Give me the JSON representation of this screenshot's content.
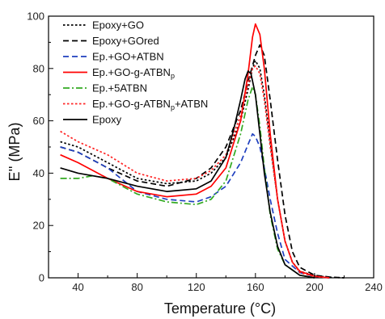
{
  "chart_data": {
    "type": "line",
    "title": "",
    "xlabel": "Temperature (°C)",
    "ylabel": "E'' (MPa)",
    "xlim": [
      20,
      240
    ],
    "ylim": [
      0,
      100
    ],
    "x_ticks": [
      40,
      80,
      120,
      160,
      200,
      240
    ],
    "y_ticks": [
      0,
      20,
      40,
      60,
      80,
      100
    ],
    "grid": false,
    "legend_position": "top-left",
    "series": [
      {
        "name": "Epoxy+GO",
        "color": "#000000",
        "dash": "dotted",
        "x": [
          28,
          40,
          60,
          80,
          100,
          120,
          130,
          140,
          150,
          155,
          158,
          160,
          163,
          166,
          170,
          175,
          180,
          185,
          190,
          200,
          210,
          220
        ],
        "y": [
          52,
          50,
          44,
          38,
          36,
          37,
          40,
          46,
          60,
          72,
          80,
          83,
          80,
          70,
          52,
          30,
          14,
          6,
          2.5,
          0.8,
          0.2,
          0
        ]
      },
      {
        "name": "Epoxy+GOred",
        "color": "#000000",
        "dash": "dashed",
        "x": [
          28,
          40,
          60,
          80,
          100,
          120,
          130,
          140,
          150,
          155,
          160,
          163,
          166,
          170,
          175,
          180,
          185,
          190,
          200,
          210,
          220
        ],
        "y": [
          50,
          48,
          42,
          37,
          35,
          38,
          42,
          50,
          64,
          75,
          85,
          89,
          85,
          68,
          45,
          24,
          10,
          4,
          1,
          0.3,
          0
        ]
      },
      {
        "name": "Ep.+GO+ATBN",
        "color": "#1f3fbf",
        "dash": "dashed",
        "x": [
          28,
          40,
          60,
          80,
          100,
          120,
          130,
          140,
          150,
          155,
          158,
          160,
          163,
          166,
          170,
          175,
          180,
          190,
          200,
          210
        ],
        "y": [
          50,
          48,
          42,
          33,
          30,
          29,
          31,
          35,
          44,
          51,
          55,
          54,
          50,
          42,
          30,
          17,
          7,
          2,
          0.5,
          0
        ]
      },
      {
        "name": "Ep.+GO-g-ATBNp",
        "color": "#ff0000",
        "dash": "solid",
        "x": [
          28,
          40,
          60,
          80,
          100,
          120,
          130,
          140,
          150,
          155,
          158,
          160,
          163,
          166,
          170,
          175,
          180,
          185,
          190,
          200,
          210
        ],
        "y": [
          47,
          44,
          38,
          33,
          31,
          32,
          35,
          42,
          60,
          78,
          92,
          97,
          93,
          80,
          55,
          30,
          14,
          6,
          2.5,
          0.6,
          0
        ]
      },
      {
        "name": "Ep.+5ATBN",
        "color": "#33aa22",
        "dash": "dashdot",
        "x": [
          28,
          40,
          50,
          60,
          80,
          100,
          120,
          130,
          140,
          150,
          155,
          158,
          160,
          163,
          166,
          170,
          175,
          180,
          190,
          200
        ],
        "y": [
          38,
          38,
          39,
          38,
          32,
          29,
          28,
          30,
          37,
          55,
          68,
          73,
          70,
          58,
          42,
          24,
          11,
          5,
          1,
          0
        ]
      },
      {
        "name": "Ep.+GO-g-ATBNp+ATBN",
        "color": "#ff2222",
        "dash": "dotted",
        "x": [
          28,
          40,
          60,
          80,
          100,
          120,
          130,
          140,
          150,
          155,
          158,
          160,
          163,
          166,
          170,
          175,
          180,
          185,
          190,
          200,
          210
        ],
        "y": [
          56,
          52,
          47,
          40,
          37,
          38,
          41,
          47,
          62,
          74,
          80,
          81,
          78,
          68,
          50,
          30,
          14,
          6,
          2,
          0.5,
          0
        ]
      },
      {
        "name": "Epoxy",
        "color": "#000000",
        "dash": "solid",
        "x": [
          28,
          40,
          60,
          80,
          100,
          120,
          130,
          140,
          145,
          150,
          153,
          155,
          157,
          160,
          163,
          166,
          170,
          175,
          180,
          190,
          200
        ],
        "y": [
          42,
          40,
          38,
          35,
          33,
          34,
          37,
          46,
          56,
          68,
          76,
          79,
          78,
          70,
          55,
          40,
          25,
          12,
          5,
          1,
          0
        ]
      }
    ]
  }
}
